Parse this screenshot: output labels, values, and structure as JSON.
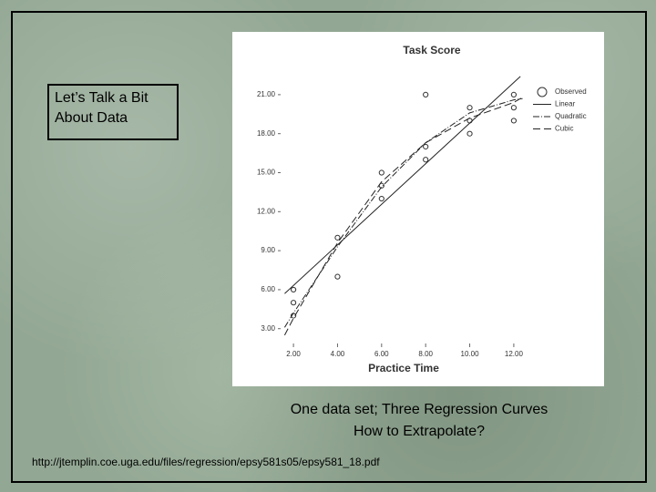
{
  "slide": {
    "box_text": [
      "Let’s Talk a Bit",
      "About Data"
    ],
    "caption": [
      "One data set; Three Regression Curves",
      "How to Extrapolate?"
    ],
    "source": "http://jtemplin.coe.uga.edu/files/regression/epsy581s05/epsy581_18.pdf"
  },
  "chart_data": {
    "type": "scatter",
    "title": "Task Score",
    "x_label": "Practice Time",
    "xlim": [
      1.5,
      12.5
    ],
    "ylim": [
      2,
      22.5
    ],
    "xticks": [
      {
        "value": 2,
        "label": "2.00"
      },
      {
        "value": 4,
        "label": "4.00"
      },
      {
        "value": 6,
        "label": "6.00"
      },
      {
        "value": 8,
        "label": "8.00"
      },
      {
        "value": 10,
        "label": "10.00"
      },
      {
        "value": 12,
        "label": "12.00"
      }
    ],
    "yticks": [
      {
        "value": 3,
        "label": "3.00"
      },
      {
        "value": 6,
        "label": "6.00"
      },
      {
        "value": 9,
        "label": "9.00"
      },
      {
        "value": 12,
        "label": "12.00"
      },
      {
        "value": 15,
        "label": "15.00"
      },
      {
        "value": 18,
        "label": "18.00"
      },
      {
        "value": 21,
        "label": "21.00"
      }
    ],
    "legend": "upper right",
    "series": [
      {
        "name": "Observed",
        "type": "scatter",
        "color": "#333333",
        "x": [
          2,
          2,
          2,
          4,
          4,
          6,
          6,
          6,
          8,
          8,
          8,
          10,
          10,
          10,
          12,
          12,
          12
        ],
        "values": [
          6,
          5,
          4,
          10,
          7,
          15,
          14,
          13,
          21,
          17,
          16,
          20,
          19,
          18,
          21,
          20,
          19
        ]
      },
      {
        "name": "Linear",
        "type": "line",
        "color": "#222222",
        "dash": "none",
        "x": [
          1.6,
          12.3
        ],
        "values": [
          5.7,
          22.4
        ]
      },
      {
        "name": "Quadratic",
        "type": "line",
        "color": "#222222",
        "dash": "7 2 1 2",
        "x": [
          1.6,
          2,
          4,
          6,
          8,
          10,
          12,
          12.4
        ],
        "values": [
          3.1,
          4.2,
          9.3,
          13.9,
          17.3,
          19.6,
          20.6,
          20.7
        ]
      },
      {
        "name": "Cubic",
        "type": "line",
        "color": "#222222",
        "dash": "8 4",
        "x": [
          1.6,
          2,
          4,
          6,
          8,
          10,
          12,
          12.4
        ],
        "values": [
          2.5,
          3.8,
          9.6,
          14.3,
          17.3,
          19.2,
          20.4,
          20.8
        ]
      }
    ]
  }
}
